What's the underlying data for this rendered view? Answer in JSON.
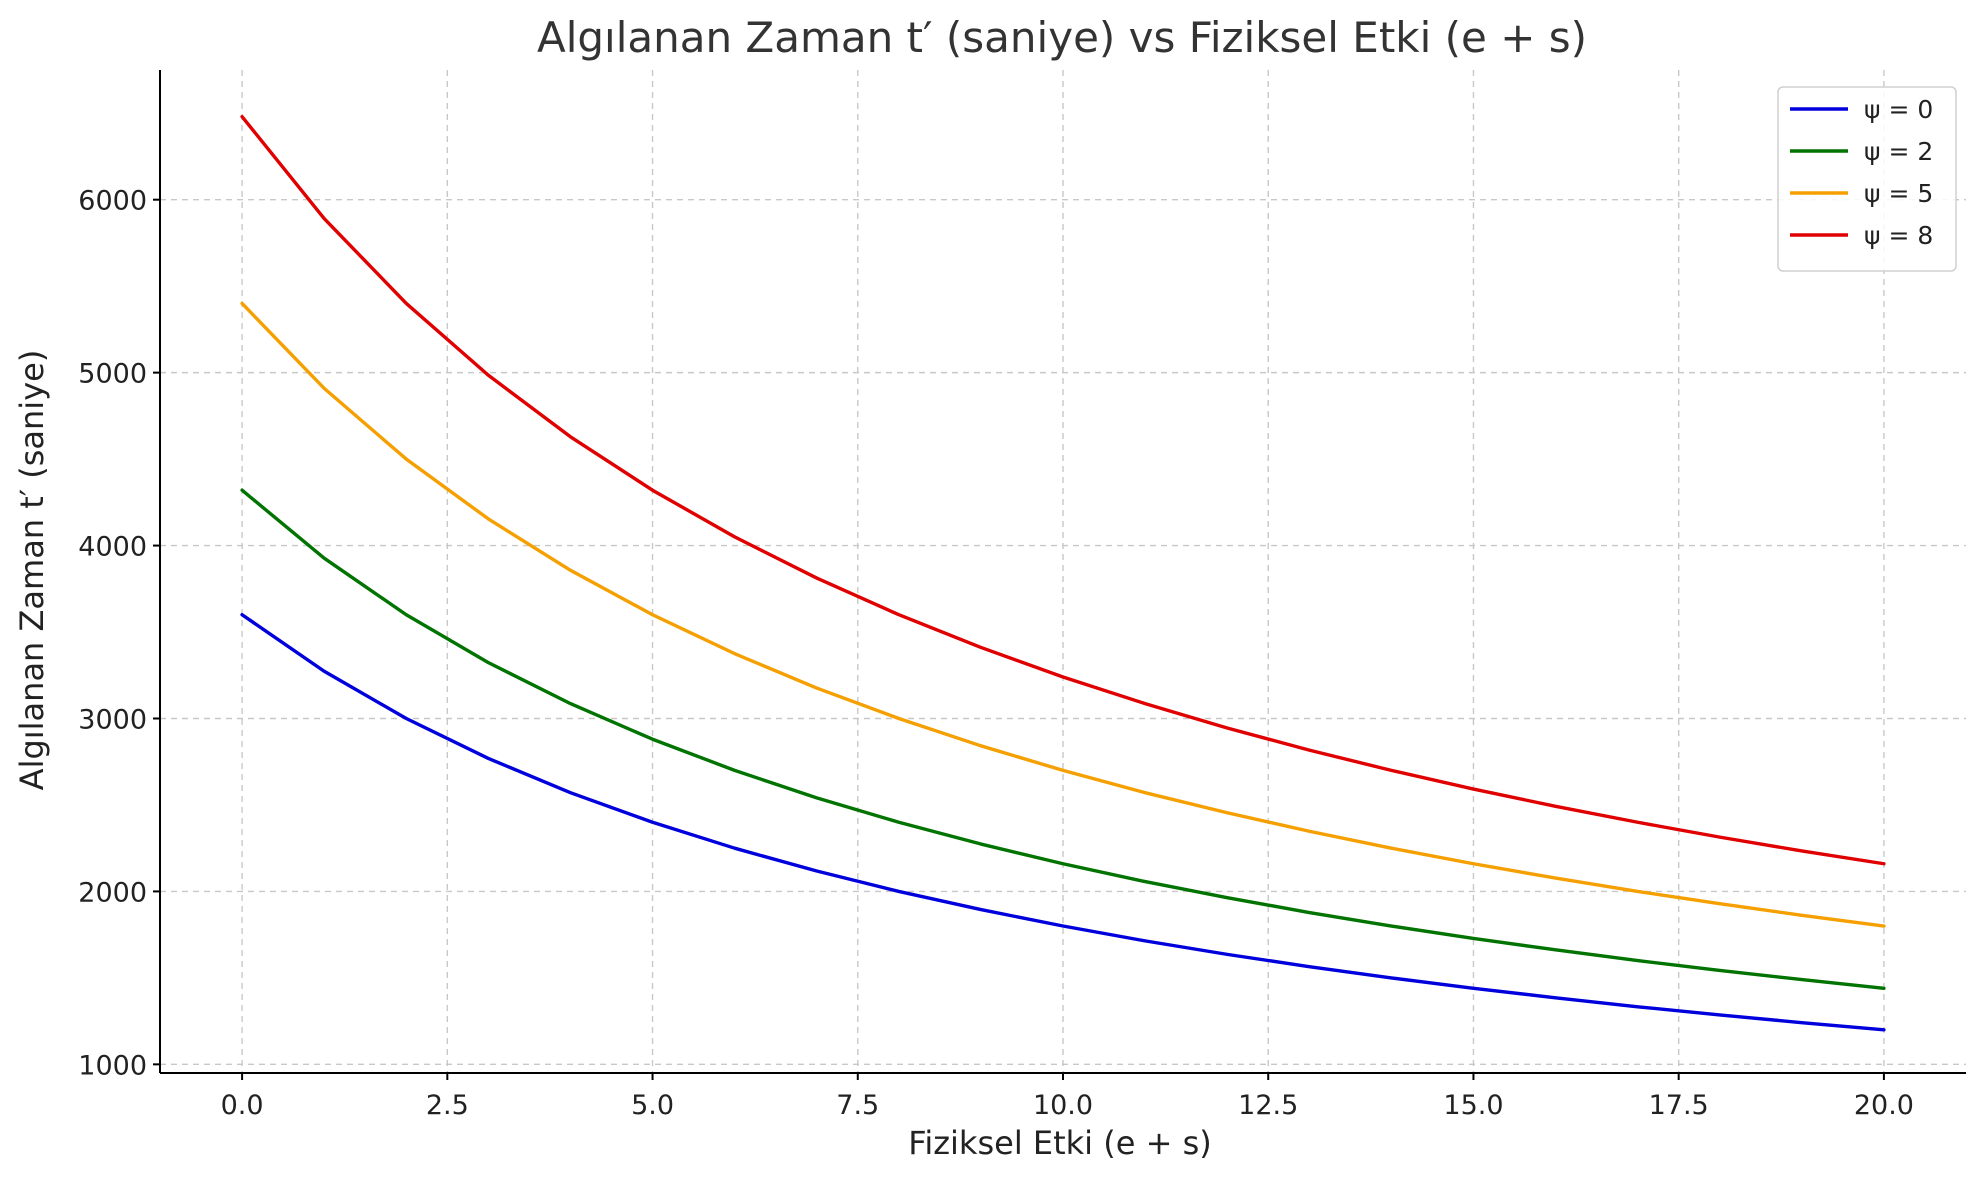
{
  "chart_data": {
    "type": "line",
    "title": "Algılanan Zaman t′ (saniye) vs Fiziksel Etki (e + s)",
    "xlabel": "Fiziksel Etki (e + s)",
    "ylabel": "Algılanan Zaman t′ (saniye)",
    "xlim": [
      -1,
      21
    ],
    "ylim": [
      950,
      6750
    ],
    "xticks": [
      0,
      2.5,
      5,
      7.5,
      10,
      12.5,
      15,
      17.5,
      20
    ],
    "xtick_labels": [
      "0.0",
      "2.5",
      "5.0",
      "7.5",
      "10.0",
      "12.5",
      "15.0",
      "17.5",
      "20.0"
    ],
    "yticks": [
      1000,
      2000,
      3000,
      4000,
      5000,
      6000
    ],
    "ytick_labels": [
      "1000",
      "2000",
      "3000",
      "4000",
      "5000",
      "6000"
    ],
    "grid": true,
    "legend_position": "top-right",
    "x": [
      0,
      1,
      2,
      3,
      4,
      5,
      6,
      7,
      8,
      9,
      10,
      11,
      12,
      13,
      14,
      15,
      16,
      17,
      18,
      19,
      20
    ],
    "series": [
      {
        "name": "ψ = 0",
        "color": "#0000dd",
        "values": [
          3600,
          3273,
          3000,
          2769,
          2571,
          2400,
          2250,
          2118,
          2000,
          1895,
          1800,
          1714,
          1636,
          1565,
          1500,
          1440,
          1385,
          1333,
          1286,
          1241,
          1200
        ]
      },
      {
        "name": "ψ = 2",
        "color": "#007300",
        "values": [
          4320,
          3927,
          3600,
          3323,
          3086,
          2880,
          2700,
          2541,
          2400,
          2274,
          2160,
          2057,
          1964,
          1878,
          1800,
          1728,
          1662,
          1600,
          1543,
          1490,
          1440
        ]
      },
      {
        "name": "ψ = 5",
        "color": "#f5a000",
        "values": [
          5400,
          4909,
          4500,
          4154,
          3857,
          3600,
          3375,
          3176,
          3000,
          2842,
          2700,
          2571,
          2455,
          2348,
          2250,
          2160,
          2077,
          2000,
          1929,
          1862,
          1800
        ]
      },
      {
        "name": "ψ = 8",
        "color": "#e00000",
        "values": [
          6480,
          5891,
          5400,
          4985,
          4629,
          4320,
          4050,
          3812,
          3600,
          3411,
          3240,
          3086,
          2945,
          2817,
          2700,
          2592,
          2492,
          2400,
          2314,
          2234,
          2160
        ]
      }
    ]
  }
}
